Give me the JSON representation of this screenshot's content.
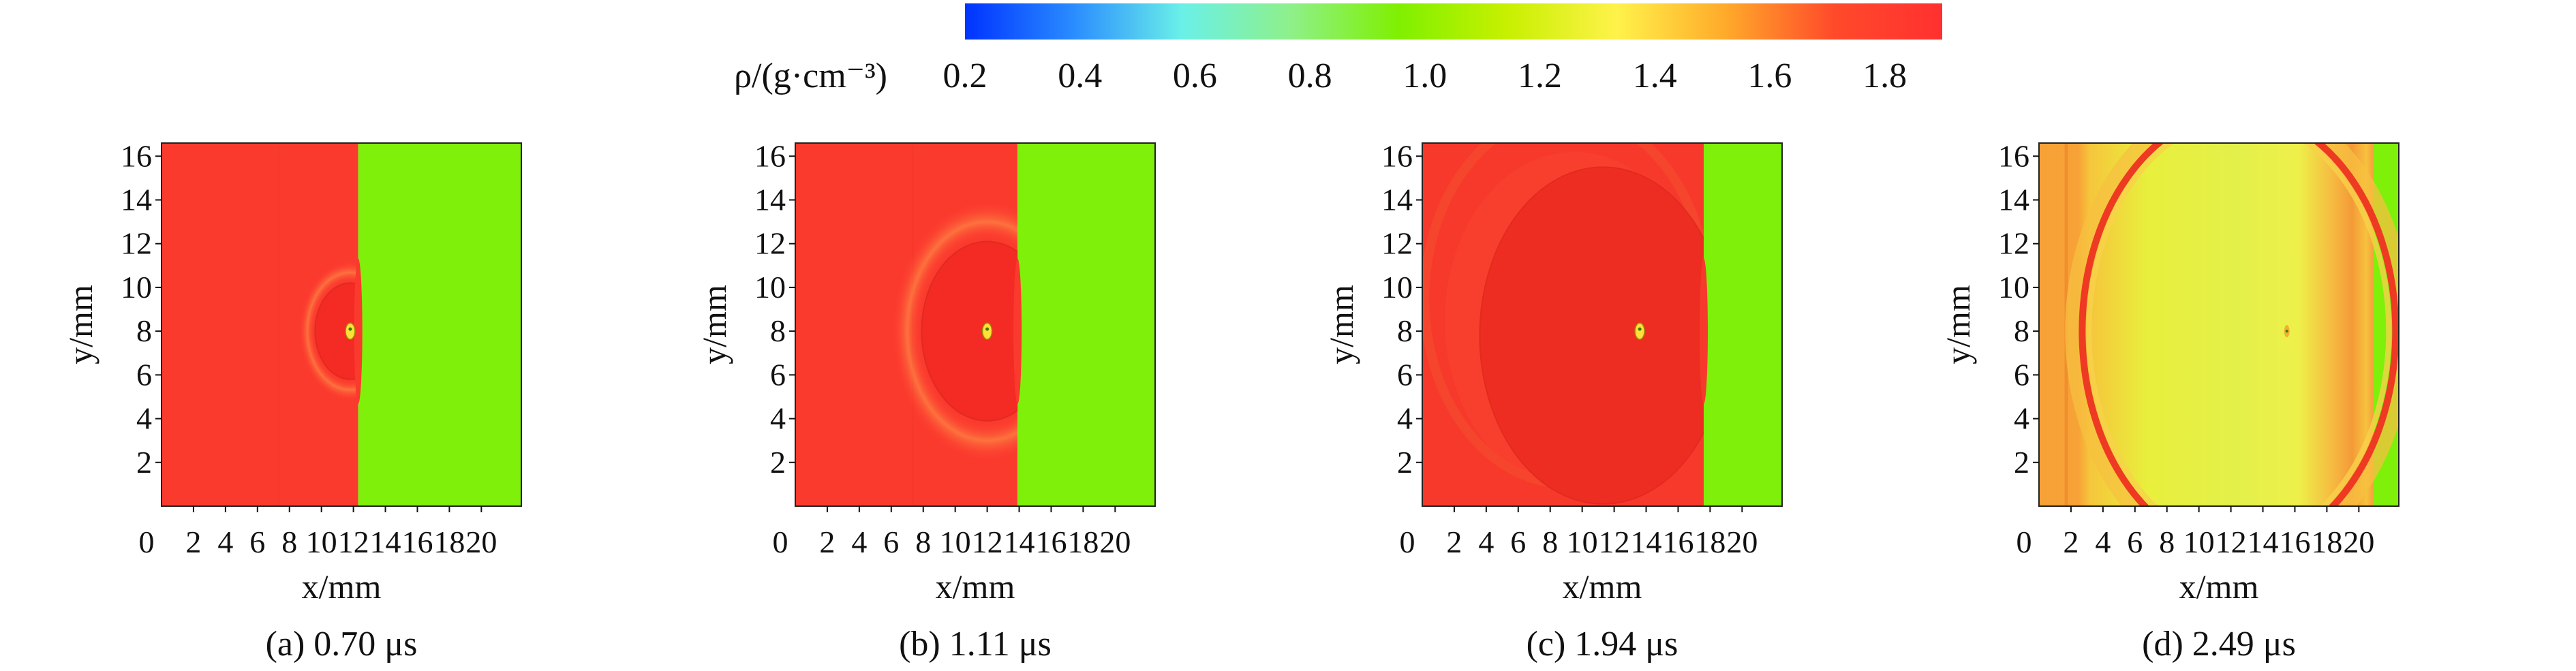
{
  "figure": {
    "colorbar": {
      "label": "ρ/(g·cm⁻³)",
      "ticks": [
        "0.2",
        "0.4",
        "0.6",
        "0.8",
        "1.0",
        "1.2",
        "1.4",
        "1.6",
        "1.8"
      ],
      "range": [
        0.2,
        1.9
      ],
      "colors": [
        "#0033ff",
        "#2a8cff",
        "#6af0e8",
        "#8ef08a",
        "#7ff000",
        "#c8f000",
        "#fff24a",
        "#ffaa2a",
        "#ff4a2a",
        "#ff3030"
      ]
    }
  },
  "chart_data": [
    {
      "type": "heatmap",
      "caption": "(a) 0.70 μs",
      "xlabel": "x/mm",
      "ylabel": "y/mm",
      "xlim": [
        0,
        22.5
      ],
      "ylim": [
        0,
        16.6
      ],
      "xticks": [
        0,
        2,
        4,
        6,
        8,
        10,
        12,
        14,
        16,
        18,
        20
      ],
      "yticks": [
        2,
        4,
        6,
        8,
        10,
        12,
        14,
        16
      ],
      "regions": {
        "shocked_density": 1.85,
        "unshocked_density": 0.95,
        "interface_x": 12.3,
        "circle": {
          "cx": 11.8,
          "cy": 8.0,
          "r": 2.2
        },
        "particle": {
          "x": 11.8,
          "y": 8.0
        }
      }
    },
    {
      "type": "heatmap",
      "caption": "(b) 1.11 μs",
      "xlabel": "x/mm",
      "ylabel": "y/mm",
      "xlim": [
        0,
        22.5
      ],
      "ylim": [
        0,
        16.6
      ],
      "xticks": [
        0,
        2,
        4,
        6,
        8,
        10,
        12,
        14,
        16,
        18,
        20
      ],
      "yticks": [
        2,
        4,
        6,
        8,
        10,
        12,
        14,
        16
      ],
      "regions": {
        "shocked_density": 1.85,
        "unshocked_density": 0.95,
        "interface_x": 13.9,
        "circle": {
          "cx": 12.0,
          "cy": 8.0,
          "r": 4.1
        },
        "particle": {
          "x": 12.0,
          "y": 8.0
        }
      }
    },
    {
      "type": "heatmap",
      "caption": "(c) 1.94 μs",
      "xlabel": "x/mm",
      "ylabel": "y/mm",
      "xlim": [
        0,
        22.5
      ],
      "ylim": [
        0,
        16.6
      ],
      "xticks": [
        0,
        2,
        4,
        6,
        8,
        10,
        12,
        14,
        16,
        18,
        20
      ],
      "yticks": [
        2,
        4,
        6,
        8,
        10,
        12,
        14,
        16
      ],
      "regions": {
        "shocked_density": 1.8,
        "unshocked_density": 0.95,
        "interface_x": 17.6,
        "circle": {
          "cx": 11.3,
          "cy": 7.8,
          "r": 7.7
        },
        "particle": {
          "x": 13.6,
          "y": 8.0
        }
      }
    },
    {
      "type": "heatmap",
      "caption": "(d) 2.49 μs",
      "xlabel": "x/mm",
      "ylabel": "y/mm",
      "xlim": [
        0,
        22.5
      ],
      "ylim": [
        0,
        16.6
      ],
      "xticks": [
        0,
        2,
        4,
        6,
        8,
        10,
        12,
        14,
        16,
        18,
        20
      ],
      "yticks": [
        2,
        4,
        6,
        8,
        10,
        12,
        14,
        16
      ],
      "regions": {
        "shocked_density": 1.5,
        "unshocked_density": 0.95,
        "interface_x": 20.5,
        "circle": {
          "cx": 12.5,
          "cy": 8.0,
          "r": 10.0
        },
        "particle": {
          "x": 15.5,
          "y": 8.0
        }
      }
    }
  ]
}
